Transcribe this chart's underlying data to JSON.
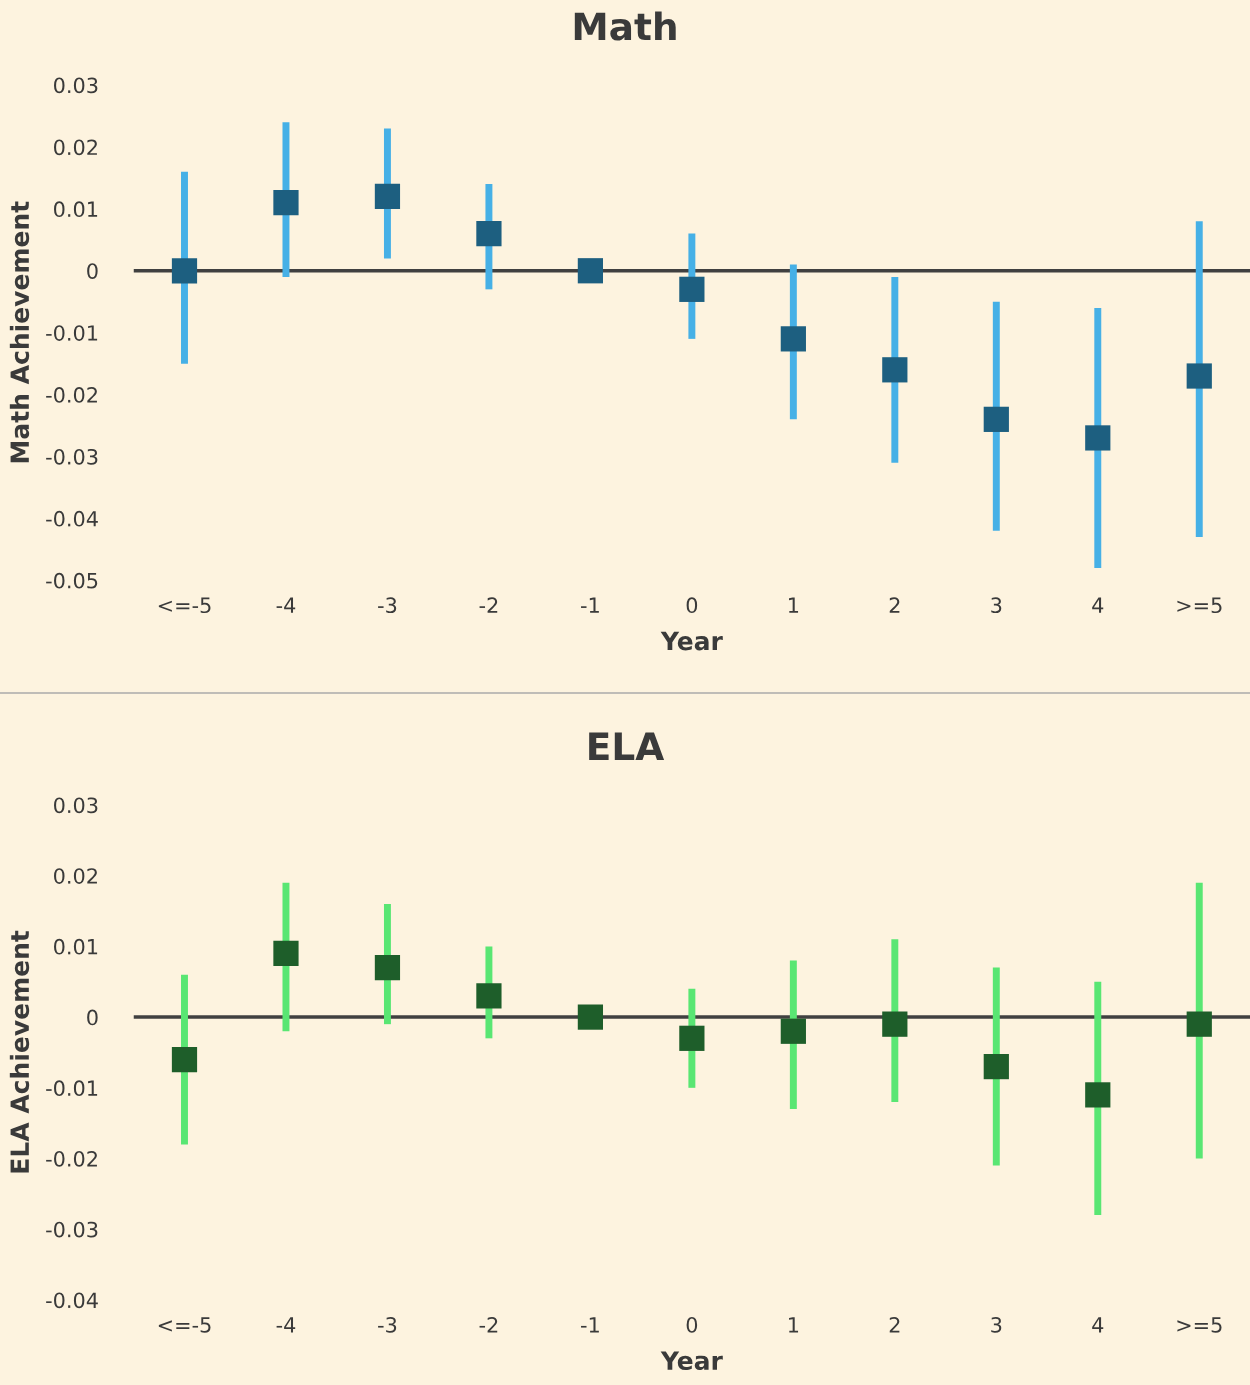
{
  "chart_data": [
    {
      "type": "scatter",
      "title": "Math",
      "xlabel": "Year",
      "ylabel": "Math Achievement",
      "categories": [
        "<=-5",
        "-4",
        "-3",
        "-2",
        "-1",
        "0",
        "1",
        "2",
        "3",
        "4",
        ">=5"
      ],
      "series": [
        {
          "color": "#1d5f80",
          "values": [
            0,
            0.011,
            0.012,
            0.006,
            0,
            -0.003,
            -0.011,
            -0.016,
            -0.024,
            -0.027,
            -0.017
          ],
          "errors": [
            [
              -0.015,
              0.016
            ],
            [
              -0.001,
              0.024
            ],
            [
              0.002,
              0.023
            ],
            [
              -0.003,
              0.014
            ],
            null,
            [
              -0.011,
              0.006
            ],
            [
              -0.024,
              0.001
            ],
            [
              -0.031,
              -0.001
            ],
            [
              -0.042,
              -0.005
            ],
            [
              -0.048,
              -0.006
            ],
            [
              -0.043,
              0.008
            ]
          ]
        }
      ],
      "ylim": [
        -0.05,
        0.03
      ],
      "yticks": [
        -0.05,
        -0.04,
        -0.03,
        -0.02,
        -0.01,
        0,
        0.01,
        0.02,
        0.03
      ],
      "marker": "square",
      "grid": false,
      "ref_lines": [
        {
          "axis": "y",
          "value": 0,
          "color": "#404040"
        }
      ]
    },
    {
      "type": "scatter",
      "title": "ELA",
      "xlabel": "Year",
      "ylabel": "ELA Achievement",
      "categories": [
        "<=-5",
        "-4",
        "-3",
        "-2",
        "-1",
        "0",
        "1",
        "2",
        "3",
        "4",
        ">=5"
      ],
      "series": [
        {
          "color": "#1e5e2a",
          "values": [
            -0.006,
            0.009,
            0.007,
            0.003,
            0,
            -0.003,
            -0.002,
            -0.001,
            -0.007,
            -0.011,
            -0.001
          ],
          "errors": [
            [
              -0.018,
              0.006
            ],
            [
              -0.002,
              0.019
            ],
            [
              -0.001,
              0.016
            ],
            [
              -0.003,
              0.01
            ],
            null,
            [
              -0.01,
              0.004
            ],
            [
              -0.013,
              0.008
            ],
            [
              -0.012,
              0.011
            ],
            [
              -0.021,
              0.007
            ],
            [
              -0.028,
              0.005
            ],
            [
              -0.02,
              0.019
            ]
          ]
        }
      ],
      "ylim": [
        -0.04,
        0.03
      ],
      "yticks": [
        -0.04,
        -0.03,
        -0.02,
        -0.01,
        0,
        0.01,
        0.02,
        0.03
      ],
      "marker": "square",
      "grid": false,
      "ref_lines": [
        {
          "axis": "y",
          "value": 0,
          "color": "#404040"
        }
      ]
    }
  ]
}
